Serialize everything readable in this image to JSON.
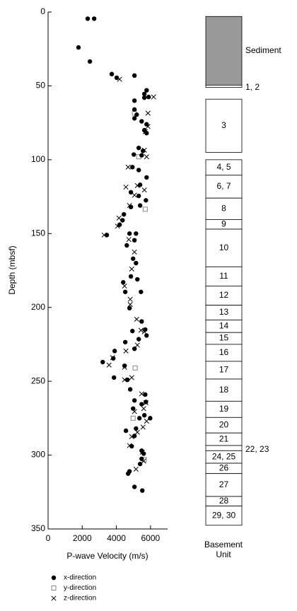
{
  "chart_data": {
    "type": "scatter",
    "xlabel": "P-wave Velocity (m/s)",
    "ylabel": "Depth (mbsf)",
    "xlim": [
      0,
      7000
    ],
    "xticks": [
      0,
      2000,
      4000,
      6000
    ],
    "ylim": [
      0,
      350
    ],
    "yticks": [
      0,
      50,
      100,
      150,
      200,
      250,
      300,
      350
    ],
    "y_inverted": true,
    "series": [
      {
        "name": "x-direction",
        "marker": "circle",
        "color": "#000000",
        "x": [
          2320,
          2700,
          1780,
          2450,
          3730,
          4020,
          5060,
          5770,
          5640,
          5060,
          5640,
          5890,
          5060,
          5190,
          5060,
          5480,
          5770,
          5640,
          5770,
          5310,
          5560,
          5480,
          5020,
          4940,
          5310,
          5770,
          5390,
          4850,
          5310,
          5730,
          5390,
          4850,
          4440,
          4360,
          4190,
          3440,
          4770,
          5150,
          4610,
          5060,
          4980,
          5150,
          4850,
          4400,
          5230,
          4520,
          5440,
          4770,
          5480,
          4940,
          5690,
          5770,
          5310,
          4520,
          5060,
          3900,
          3820,
          3200,
          4480,
          3860,
          4650,
          4810,
          5690,
          5060,
          5730,
          5480,
          4980,
          5640,
          5350,
          5980,
          5150,
          4560,
          5060,
          4900,
          5480,
          5600,
          5480,
          5390,
          4770,
          4690,
          5060,
          5520
        ],
        "values": [
          4.5,
          4.5,
          24,
          33.5,
          42,
          44.5,
          43,
          53,
          55.5,
          60,
          58,
          57.5,
          66,
          69.5,
          72,
          74,
          76,
          80,
          82,
          92,
          94,
          97,
          96.5,
          105,
          107,
          112,
          117,
          122,
          124.5,
          127.5,
          131,
          132,
          137,
          141,
          144,
          151,
          150,
          150,
          158,
          154.5,
          167,
          170,
          179,
          183,
          181,
          189.5,
          189.5,
          200.5,
          209.5,
          216,
          215,
          219,
          221.5,
          223.5,
          228,
          229.5,
          234.5,
          237,
          239.5,
          247.5,
          249,
          255.5,
          259,
          263,
          264,
          265.5,
          268.5,
          273,
          275,
          275,
          282,
          283.5,
          287,
          294,
          297,
          299,
          302.5,
          306,
          311,
          312.5,
          321.5,
          324
        ]
      },
      {
        "name": "y-direction",
        "marker": "square",
        "color": "#000000",
        "x": [
          5060,
          5310,
          5690,
          5100,
          4980,
          5640
        ],
        "values": [
          68.5,
          98,
          133.5,
          241,
          275,
          303
        ]
      },
      {
        "name": "z-direction",
        "marker": "x",
        "color": "#000000",
        "x": [
          4190,
          6180,
          5850,
          5850,
          5690,
          5640,
          5770,
          4690,
          4560,
          5230,
          5640,
          5060,
          4770,
          4150,
          4070,
          3280,
          4730,
          5060,
          4900,
          4480,
          4810,
          4810,
          5190,
          5440,
          5640,
          5230,
          4560,
          3780,
          3570,
          4480,
          4900,
          4480,
          5480,
          5730,
          5600,
          5060,
          5770,
          5560,
          5230,
          4900,
          4770,
          5520,
          5600,
          5150
        ],
        "values": [
          45.5,
          57.5,
          68.5,
          77.5,
          81,
          93.5,
          98,
          105,
          118.5,
          117.5,
          120.5,
          124,
          131,
          139.5,
          145,
          151,
          154,
          162.5,
          174,
          185.5,
          194.5,
          198,
          208,
          215.5,
          216.5,
          225.5,
          229.5,
          234,
          239,
          240.5,
          247.5,
          249,
          258.5,
          264.5,
          268.5,
          270.5,
          277,
          281,
          284.5,
          287.5,
          293.5,
          298,
          304,
          309.5
        ]
      }
    ],
    "column_title": [
      "Basement",
      "Unit"
    ],
    "units": [
      {
        "label": "Sediment",
        "top": 3,
        "bottom": 49.5,
        "color": "#999999"
      },
      {
        "label": "1, 2",
        "top": 49.5,
        "bottom": 51
      },
      {
        "label": "3",
        "top": 59,
        "bottom": 95
      },
      {
        "label": "4, 5",
        "top": 100,
        "bottom": 110.5
      },
      {
        "label": "6, 7",
        "top": 110.5,
        "bottom": 126
      },
      {
        "label": "8",
        "top": 126,
        "bottom": 140.5
      },
      {
        "label": "9",
        "top": 140.5,
        "bottom": 147
      },
      {
        "label": "10",
        "top": 147,
        "bottom": 172.5
      },
      {
        "label": "11",
        "top": 172.5,
        "bottom": 185.5
      },
      {
        "label": "12",
        "top": 185.5,
        "bottom": 198.5
      },
      {
        "label": "13",
        "top": 198.5,
        "bottom": 208.5
      },
      {
        "label": "14",
        "top": 208.5,
        "bottom": 217
      },
      {
        "label": "15",
        "top": 217,
        "bottom": 225
      },
      {
        "label": "16",
        "top": 225,
        "bottom": 236.5
      },
      {
        "label": "17",
        "top": 236.5,
        "bottom": 248.5
      },
      {
        "label": "18",
        "top": 248.5,
        "bottom": 263.5
      },
      {
        "label": "19",
        "top": 263.5,
        "bottom": 274.5
      },
      {
        "label": "20",
        "top": 274.5,
        "bottom": 285
      },
      {
        "label": "21",
        "top": 285,
        "bottom": 293.5
      },
      {
        "label": "22, 23",
        "top": 293.5,
        "bottom": 297
      },
      {
        "label": "24, 25",
        "top": 297,
        "bottom": 305.5
      },
      {
        "label": "26",
        "top": 305.5,
        "bottom": 312.5
      },
      {
        "label": "27",
        "top": 312.5,
        "bottom": 328
      },
      {
        "label": "28",
        "top": 328,
        "bottom": 334.5
      },
      {
        "label": "29, 30",
        "top": 334.5,
        "bottom": 347.5
      }
    ]
  }
}
